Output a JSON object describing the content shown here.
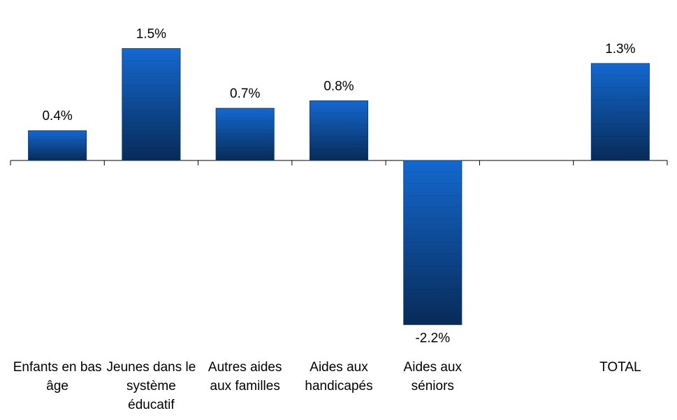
{
  "chart_data": {
    "type": "bar",
    "categories": [
      "Enfants en bas âge",
      "Jeunes dans le système éducatif",
      "Autres aides aux familles",
      "Aides aux handicapés",
      "Aides aux séniors",
      null,
      "TOTAL"
    ],
    "values": [
      0.4,
      1.5,
      0.7,
      0.8,
      -2.2,
      null,
      1.3
    ],
    "value_labels": [
      "0.4%",
      "1.5%",
      "0.7%",
      "0.8%",
      "-2.2%",
      null,
      "1.3%"
    ],
    "gradient_colors": [
      "#1468cf",
      "#082b58"
    ],
    "ylim": [
      -2.5,
      2
    ]
  }
}
